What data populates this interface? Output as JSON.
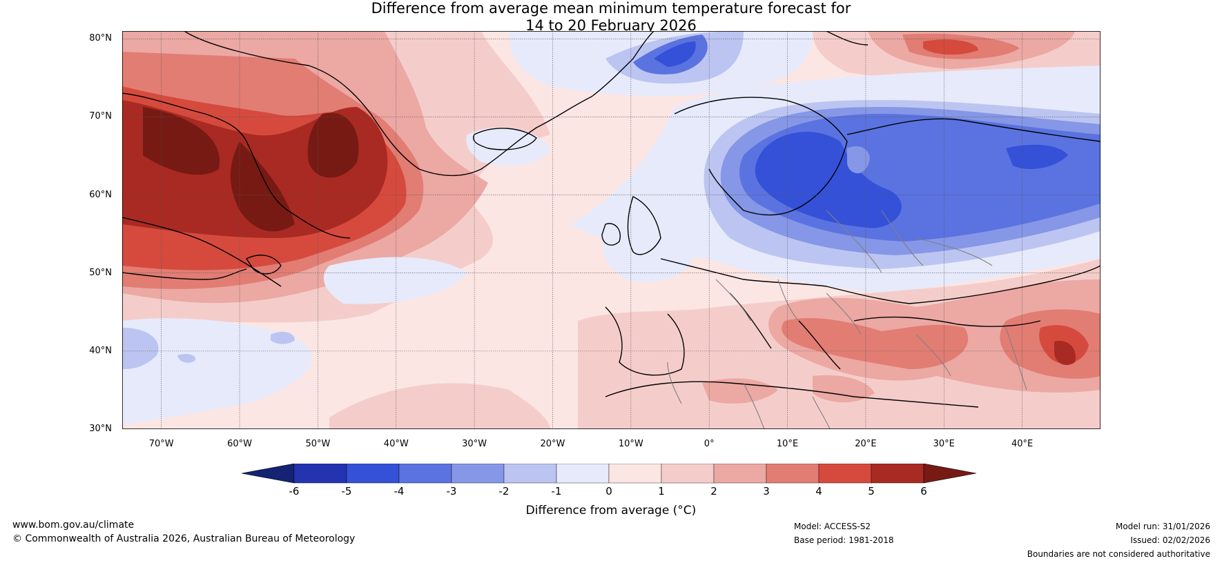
{
  "title": {
    "line1": "Difference from average mean minimum temperature forecast for",
    "line2": "14 to 20 February 2026"
  },
  "map": {
    "lat_labels": [
      "80°N",
      "70°N",
      "60°N",
      "50°N",
      "40°N",
      "30°N"
    ],
    "lon_labels": [
      "70°W",
      "60°W",
      "50°W",
      "40°W",
      "30°W",
      "20°W",
      "10°W",
      "0°",
      "10°E",
      "20°E",
      "30°E",
      "40°E"
    ],
    "lat_values": [
      80,
      70,
      60,
      50,
      40,
      30
    ],
    "lon_values": [
      -70,
      -60,
      -50,
      -40,
      -30,
      -20,
      -10,
      0,
      10,
      20,
      30,
      40
    ],
    "extent": {
      "lon_min": -75,
      "lon_max": 50,
      "lat_min": 30,
      "lat_max": 81
    }
  },
  "colorbar": {
    "ticks": [
      "-6",
      "-5",
      "-4",
      "-3",
      "-2",
      "-1",
      "0",
      "1",
      "2",
      "3",
      "4",
      "5",
      "6"
    ],
    "colors": [
      "#142373",
      "#2434b0",
      "#3451d8",
      "#5b73e0",
      "#8597e6",
      "#bcc5f1",
      "#e6eafb",
      "#fbe6e4",
      "#f4cdca",
      "#eca8a3",
      "#e27d74",
      "#d64a3e",
      "#a92a22",
      "#771a14"
    ],
    "label": "Difference from average (°C)"
  },
  "footer": {
    "website": "www.bom.gov.au/climate",
    "copyright": "© Commonwealth of Australia 2026, Australian Bureau of Meteorology",
    "model": "Model: ACCESS-S2",
    "base_period": "Base period: 1981-2018",
    "model_run": "Model run: 31/01/2026",
    "issued": "Issued: 02/02/2026",
    "disclaimer": "Boundaries are not considered authoritative"
  }
}
